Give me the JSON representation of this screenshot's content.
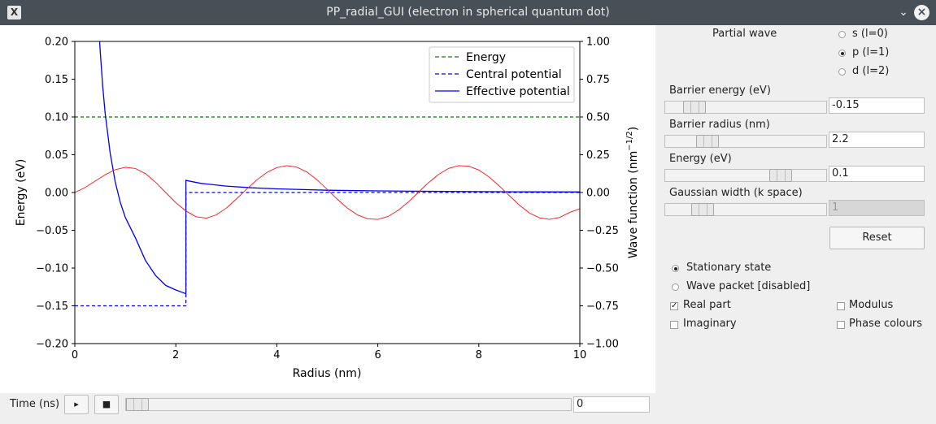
{
  "window": {
    "title": "PP_radial_GUI (electron in spherical quantum dot)",
    "app_icon": "x-app-icon"
  },
  "chart_data": {
    "type": "line",
    "xlabel": "Radius (nm)",
    "ylabel": "Energy (eV)",
    "y2label": "Wave function (nm",
    "y2label_exp": "−1/2",
    "xlim": [
      0,
      10
    ],
    "ylim": [
      -0.2,
      0.2
    ],
    "y2lim": [
      -1.0,
      1.0
    ],
    "x_ticks": [
      "0",
      "2",
      "4",
      "6",
      "8",
      "10"
    ],
    "y_ticks": [
      "0.20",
      "0.15",
      "0.10",
      "0.05",
      "0.00",
      "−0.05",
      "−0.10",
      "−0.15",
      "−0.20"
    ],
    "y2_ticks": [
      "1.00",
      "0.75",
      "0.50",
      "0.25",
      "0.00",
      "−0.25",
      "−0.50",
      "−0.75",
      "−1.00"
    ],
    "legend_position": "top-right",
    "series": [
      {
        "name": "Energy",
        "color": "#008000",
        "style": "dashed",
        "x": [
          0,
          10
        ],
        "y": [
          0.1,
          0.1
        ]
      },
      {
        "name": "Central potential",
        "color": "#0000ee",
        "style": "dashed",
        "x": [
          0,
          2.2,
          2.2,
          10
        ],
        "y": [
          -0.15,
          -0.15,
          0.0,
          0.0
        ]
      },
      {
        "name": "Effective potential",
        "color": "#0000ee",
        "style": "solid",
        "x": [
          0.45,
          0.5,
          0.55,
          0.6,
          0.7,
          0.8,
          0.9,
          1.0,
          1.2,
          1.4,
          1.6,
          1.8,
          2.0,
          2.2,
          2.2,
          2.5,
          3.0,
          3.5,
          4.0,
          5.0,
          6.0,
          7.0,
          8.0,
          9.0,
          10.0
        ],
        "y": [
          0.25,
          0.191,
          0.142,
          0.105,
          0.052,
          0.014,
          -0.013,
          -0.033,
          -0.06,
          -0.09,
          -0.11,
          -0.123,
          -0.129,
          -0.134,
          0.016,
          0.012,
          0.0085,
          0.0062,
          0.0048,
          0.003,
          0.0021,
          0.0016,
          0.0012,
          0.0009,
          0.0008
        ]
      },
      {
        "name": "Real part",
        "color": "#ff1010",
        "style": "solid",
        "axis": "right",
        "x": [
          0.0,
          0.2,
          0.4,
          0.6,
          0.8,
          1.0,
          1.2,
          1.4,
          1.6,
          1.8,
          2.0,
          2.2,
          2.4,
          2.6,
          2.8,
          3.0,
          3.2,
          3.4,
          3.6,
          3.8,
          4.0,
          4.2,
          4.4,
          4.6,
          4.8,
          5.0,
          5.2,
          5.4,
          5.6,
          5.8,
          6.0,
          6.2,
          6.4,
          6.6,
          6.8,
          7.0,
          7.2,
          7.4,
          7.6,
          7.8,
          8.0,
          8.2,
          8.4,
          8.6,
          8.8,
          9.0,
          9.2,
          9.4,
          9.6,
          9.8,
          10.0
        ],
        "y": [
          0.0,
          0.032,
          0.075,
          0.117,
          0.151,
          0.167,
          0.159,
          0.125,
          0.068,
          0.0,
          -0.067,
          -0.122,
          -0.16,
          -0.17,
          -0.148,
          -0.103,
          -0.043,
          0.021,
          0.082,
          0.132,
          0.165,
          0.178,
          0.168,
          0.135,
          0.083,
          0.02,
          -0.045,
          -0.104,
          -0.149,
          -0.174,
          -0.178,
          -0.159,
          -0.119,
          -0.064,
          0.0,
          0.064,
          0.119,
          0.159,
          0.178,
          0.174,
          0.149,
          0.104,
          0.045,
          -0.02,
          -0.083,
          -0.135,
          -0.168,
          -0.178,
          -0.165,
          -0.132,
          -0.107
        ]
      }
    ]
  },
  "time": {
    "label": "Time (ns)",
    "play_icon": "play-icon",
    "stop_icon": "stop-icon",
    "value": "0",
    "slider_fraction": 0.0
  },
  "panel": {
    "partial_wave": {
      "label": "Partial wave",
      "options": [
        "s (l=0)",
        "p (l=1)",
        "d (l=2)"
      ],
      "selected": "p (l=1)"
    },
    "barrier_energy": {
      "label": "Barrier energy (eV)",
      "value": "-0.15"
    },
    "barrier_radius": {
      "label": "Barrier radius (nm)",
      "value": "2.2"
    },
    "energy": {
      "label": "Energy (eV)",
      "value": "0.1"
    },
    "gaussian_width": {
      "label": "Gaussian width (k space)",
      "value": "1"
    },
    "reset_label": "Reset",
    "mode": {
      "stationary": "Stationary state",
      "packet": "Wave packet [disabled]",
      "selected": "Stationary state"
    },
    "display": {
      "real": "Real part",
      "imaginary": "Imaginary",
      "modulus": "Modulus",
      "phase": "Phase colours",
      "checked": [
        "Real part"
      ]
    }
  }
}
